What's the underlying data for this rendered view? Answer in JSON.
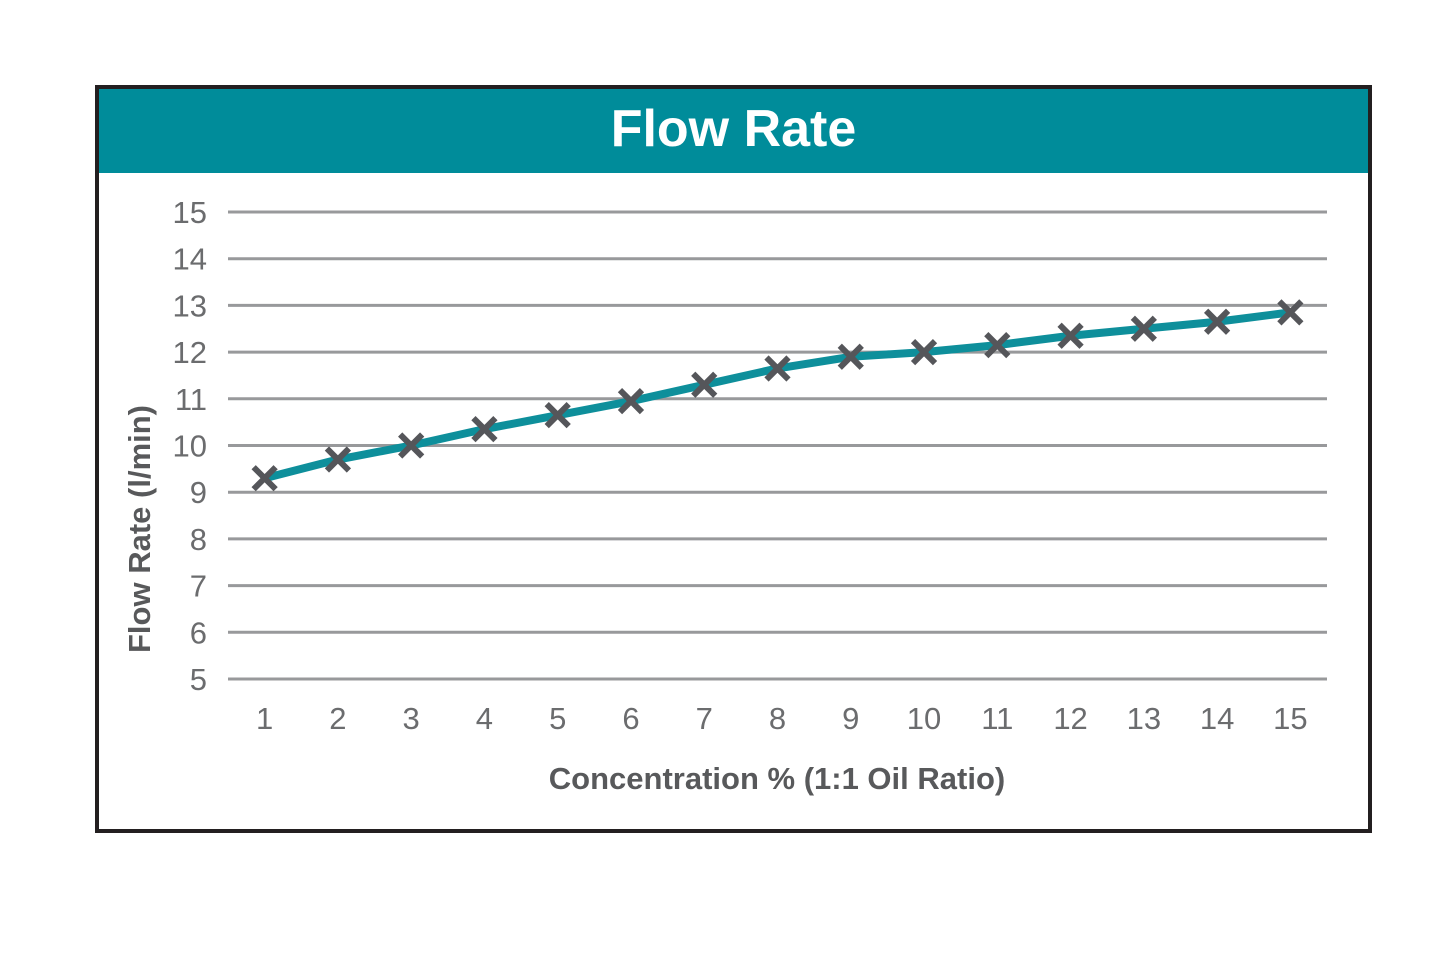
{
  "chart_data": {
    "type": "line",
    "title": "Flow Rate",
    "xlabel": "Concentration % (1:1 Oil Ratio)",
    "ylabel": "Flow Rate (l/min)",
    "x": [
      1,
      2,
      3,
      4,
      5,
      6,
      7,
      8,
      9,
      10,
      11,
      12,
      13,
      14,
      15
    ],
    "series": [
      {
        "name": "Flow Rate",
        "values": [
          9.3,
          9.7,
          10.0,
          10.35,
          10.65,
          10.95,
          11.3,
          11.65,
          11.9,
          12.0,
          12.15,
          12.35,
          12.5,
          12.65,
          12.85
        ]
      }
    ],
    "ylim": [
      5,
      15
    ],
    "ytick_step": 1,
    "yticks": [
      5,
      6,
      7,
      8,
      9,
      10,
      11,
      12,
      13,
      14,
      15
    ],
    "grid": "horizontal",
    "legend": "none",
    "marker": "x",
    "colors": {
      "header_bg": "#008c9a",
      "header_text": "#ffffff",
      "line": "#0e8f9b",
      "marker": "#55565a",
      "grid": "#98999b",
      "tick_label": "#6b6c6e",
      "axis_title": "#58595b",
      "frame_border": "#231f20"
    }
  }
}
